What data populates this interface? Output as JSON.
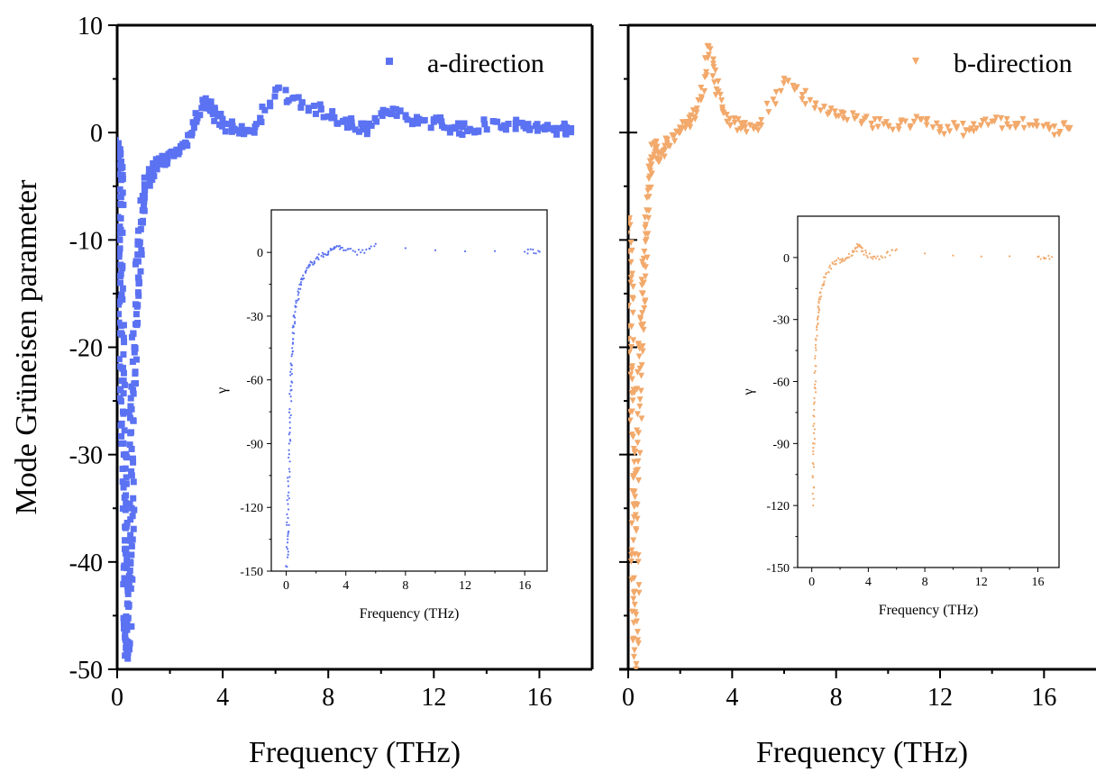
{
  "chart_data": [
    {
      "id": "a-main",
      "type": "scatter",
      "xlabel": "Frequency (THz)",
      "ylabel": "Mode Grüneisen parameter",
      "xlim": [
        0,
        18
      ],
      "ylim": [
        -50,
        10
      ],
      "xticks": [
        0,
        4,
        8,
        12,
        16
      ],
      "yticks": [
        10,
        0,
        -10,
        -20,
        -30,
        -40,
        -50
      ],
      "legend_position": "top-right",
      "marker": "square",
      "color": "#5b72f2",
      "series": [
        {
          "name": "a-direction",
          "points": [
            [
              0.05,
              -1
            ],
            [
              0.1,
              -3
            ],
            [
              0.15,
              -6
            ],
            [
              0.1,
              -10
            ],
            [
              0.12,
              -14
            ],
            [
              0.15,
              -18
            ],
            [
              0.2,
              -22
            ],
            [
              0.22,
              -26
            ],
            [
              0.25,
              -30
            ],
            [
              0.28,
              -34
            ],
            [
              0.3,
              -38
            ],
            [
              0.32,
              -42
            ],
            [
              0.35,
              -46
            ],
            [
              0.4,
              -49
            ],
            [
              0.45,
              -44
            ],
            [
              0.5,
              -40
            ],
            [
              0.55,
              -35
            ],
            [
              0.5,
              -28
            ],
            [
              0.6,
              -24
            ],
            [
              0.65,
              -20
            ],
            [
              0.7,
              -16
            ],
            [
              0.8,
              -12
            ],
            [
              0.9,
              -9
            ],
            [
              1.0,
              -6
            ],
            [
              1.2,
              -4
            ],
            [
              1.5,
              -3
            ],
            [
              1.8,
              -2.5
            ],
            [
              2.2,
              -2
            ],
            [
              2.6,
              -1
            ],
            [
              3.0,
              1
            ],
            [
              3.3,
              3
            ],
            [
              3.6,
              2
            ],
            [
              4.0,
              0.8
            ],
            [
              4.6,
              0.2
            ],
            [
              5.2,
              0
            ],
            [
              6.0,
              4
            ],
            [
              7.0,
              2.8
            ],
            [
              8.0,
              1.5
            ],
            [
              8.8,
              1
            ],
            [
              9.4,
              0.3
            ],
            [
              10.2,
              2
            ],
            [
              11.0,
              1.2
            ],
            [
              12.0,
              1
            ],
            [
              12.8,
              0.5
            ],
            [
              13.4,
              0.2
            ],
            [
              14.4,
              1
            ],
            [
              15.4,
              0.6
            ],
            [
              16.2,
              0.3
            ],
            [
              16.8,
              0.4
            ],
            [
              17.2,
              0.4
            ]
          ]
        }
      ]
    },
    {
      "id": "a-inset",
      "type": "scatter",
      "xlabel": "Frequency (THz)",
      "ylabel": "γ",
      "xlim": [
        -1,
        17.5
      ],
      "ylim": [
        -150,
        20
      ],
      "xticks": [
        0,
        4,
        8,
        12,
        16
      ],
      "yticks": [
        0,
        -30,
        -60,
        -90,
        -120,
        -150
      ],
      "marker": "dot",
      "color": "#5b72f2",
      "series": [
        {
          "points": [
            [
              0.05,
              -148
            ],
            [
              0.1,
              -135
            ],
            [
              0.12,
              -125
            ],
            [
              0.15,
              -110
            ],
            [
              0.2,
              -95
            ],
            [
              0.25,
              -80
            ],
            [
              0.3,
              -65
            ],
            [
              0.35,
              -55
            ],
            [
              0.4,
              -45
            ],
            [
              0.5,
              -35
            ],
            [
              0.6,
              -28
            ],
            [
              0.8,
              -20
            ],
            [
              1.0,
              -14
            ],
            [
              1.3,
              -9
            ],
            [
              1.6,
              -6
            ],
            [
              2.0,
              -3
            ],
            [
              2.5,
              -1
            ],
            [
              3.0,
              1
            ],
            [
              3.4,
              3
            ],
            [
              4.0,
              1
            ],
            [
              5.0,
              0
            ],
            [
              6.0,
              4
            ],
            [
              8.0,
              2
            ],
            [
              10.0,
              1
            ],
            [
              12.0,
              0.5
            ],
            [
              14.0,
              0.6
            ],
            [
              16.0,
              0.3
            ],
            [
              17.0,
              0.3
            ]
          ]
        }
      ]
    },
    {
      "id": "b-main",
      "type": "scatter",
      "xlabel": "Frequency (THz)",
      "xlim": [
        0,
        18
      ],
      "ylim": [
        -50,
        10
      ],
      "xticks": [
        0,
        4,
        8,
        12,
        16
      ],
      "legend_position": "top-right",
      "marker": "triangle-down",
      "color": "#f2a96b",
      "series": [
        {
          "name": "b-direction",
          "points": [
            [
              0.05,
              -8
            ],
            [
              0.1,
              -14
            ],
            [
              0.12,
              -20
            ],
            [
              0.15,
              -26
            ],
            [
              0.2,
              -32
            ],
            [
              0.2,
              -38
            ],
            [
              0.25,
              -44
            ],
            [
              0.3,
              -50
            ],
            [
              0.35,
              -36
            ],
            [
              0.4,
              -28
            ],
            [
              0.45,
              -22
            ],
            [
              0.5,
              -18
            ],
            [
              0.6,
              -14
            ],
            [
              0.7,
              -10
            ],
            [
              0.8,
              -6
            ],
            [
              0.9,
              -3
            ],
            [
              1.0,
              -1
            ],
            [
              1.2,
              -2.5
            ],
            [
              1.5,
              -1
            ],
            [
              2.0,
              0
            ],
            [
              2.4,
              1
            ],
            [
              2.8,
              3
            ],
            [
              3.1,
              8
            ],
            [
              3.4,
              4
            ],
            [
              3.8,
              1
            ],
            [
              4.4,
              0.5
            ],
            [
              5.0,
              0.2
            ],
            [
              6.0,
              5
            ],
            [
              7.0,
              3
            ],
            [
              8.0,
              1.5
            ],
            [
              9.0,
              1
            ],
            [
              10.0,
              0.6
            ],
            [
              11.0,
              1
            ],
            [
              12.0,
              0.5
            ],
            [
              13.0,
              0.2
            ],
            [
              14.0,
              1
            ],
            [
              15.0,
              0.8
            ],
            [
              16.2,
              0.3
            ],
            [
              17.0,
              0.4
            ]
          ]
        }
      ]
    },
    {
      "id": "b-inset",
      "type": "scatter",
      "xlabel": "Frequency (THz)",
      "ylabel": "γ",
      "xlim": [
        -1,
        17.5
      ],
      "ylim": [
        -150,
        20
      ],
      "xticks": [
        0,
        4,
        8,
        12,
        16
      ],
      "yticks": [
        0,
        -30,
        -60,
        -90,
        -120,
        -150
      ],
      "marker": "dot",
      "color": "#f2a96b",
      "series": [
        {
          "points": [
            [
              0.1,
              -120
            ],
            [
              0.12,
              -100
            ],
            [
              0.15,
              -85
            ],
            [
              0.2,
              -70
            ],
            [
              0.25,
              -55
            ],
            [
              0.3,
              -40
            ],
            [
              0.4,
              -30
            ],
            [
              0.5,
              -22
            ],
            [
              0.7,
              -15
            ],
            [
              1.0,
              -8
            ],
            [
              1.5,
              -3
            ],
            [
              2.0,
              -1
            ],
            [
              2.5,
              0
            ],
            [
              3.0,
              3
            ],
            [
              3.3,
              6
            ],
            [
              3.6,
              3
            ],
            [
              4.2,
              0
            ],
            [
              5.0,
              0
            ],
            [
              6.0,
              4
            ],
            [
              8.0,
              2
            ],
            [
              10.0,
              1
            ],
            [
              12.0,
              0.5
            ],
            [
              14.0,
              0.6
            ],
            [
              16.0,
              0.3
            ],
            [
              17.0,
              0.3
            ]
          ]
        }
      ]
    }
  ]
}
